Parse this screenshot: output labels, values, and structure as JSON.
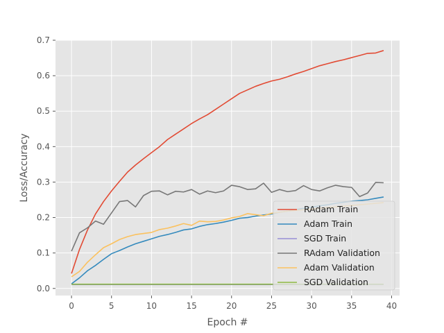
{
  "chart_data": {
    "type": "line",
    "title": "",
    "xlabel": "Epoch #",
    "ylabel": "Loss/Accuracy",
    "xlim": [
      -2,
      41
    ],
    "ylim": [
      -0.02,
      0.7
    ],
    "xticks": [
      0,
      5,
      10,
      15,
      20,
      25,
      30,
      35,
      40
    ],
    "yticks": [
      0.0,
      0.1,
      0.2,
      0.3,
      0.4,
      0.5,
      0.6,
      0.7
    ],
    "xtick_labels": [
      "0",
      "5",
      "10",
      "15",
      "20",
      "25",
      "30",
      "35",
      "40"
    ],
    "ytick_labels": [
      "0.0",
      "0.1",
      "0.2",
      "0.3",
      "0.4",
      "0.5",
      "0.6",
      "0.7"
    ],
    "grid": true,
    "legend_position": "lower-right",
    "style": "ggplot",
    "x": [
      0,
      1,
      2,
      3,
      4,
      5,
      6,
      7,
      8,
      9,
      10,
      11,
      12,
      13,
      14,
      15,
      16,
      17,
      18,
      19,
      20,
      21,
      22,
      23,
      24,
      25,
      26,
      27,
      28,
      29,
      30,
      31,
      32,
      33,
      34,
      35,
      36,
      37,
      38,
      39
    ],
    "series": [
      {
        "name": "RAdam Train",
        "color": "#e24a33",
        "values": [
          0.042,
          0.11,
          0.165,
          0.21,
          0.245,
          0.275,
          0.302,
          0.328,
          0.348,
          0.366,
          0.383,
          0.4,
          0.42,
          0.435,
          0.45,
          0.465,
          0.478,
          0.49,
          0.505,
          0.52,
          0.535,
          0.55,
          0.56,
          0.57,
          0.578,
          0.585,
          0.59,
          0.597,
          0.605,
          0.612,
          0.62,
          0.628,
          0.634,
          0.64,
          0.645,
          0.651,
          0.657,
          0.663,
          0.664,
          0.671
        ]
      },
      {
        "name": "Adam Train",
        "color": "#348abd",
        "values": [
          0.013,
          0.03,
          0.05,
          0.065,
          0.082,
          0.098,
          0.107,
          0.117,
          0.126,
          0.133,
          0.14,
          0.147,
          0.152,
          0.158,
          0.165,
          0.168,
          0.175,
          0.18,
          0.183,
          0.187,
          0.192,
          0.198,
          0.2,
          0.204,
          0.207,
          0.21,
          0.215,
          0.218,
          0.222,
          0.226,
          0.229,
          0.233,
          0.236,
          0.24,
          0.243,
          0.246,
          0.248,
          0.25,
          0.254,
          0.258
        ]
      },
      {
        "name": "SGD Train",
        "color": "#988ed5",
        "values": [
          0.011,
          0.011,
          0.011,
          0.011,
          0.011,
          0.011,
          0.011,
          0.011,
          0.011,
          0.011,
          0.011,
          0.011,
          0.011,
          0.011,
          0.011,
          0.011,
          0.011,
          0.011,
          0.011,
          0.011,
          0.011,
          0.011,
          0.011,
          0.011,
          0.011,
          0.011,
          0.011,
          0.011,
          0.011,
          0.011,
          0.011,
          0.011,
          0.011,
          0.011,
          0.011,
          0.011,
          0.011,
          0.011,
          0.011,
          0.011
        ]
      },
      {
        "name": "RAdam Validation",
        "color": "#777777",
        "values": [
          0.105,
          0.157,
          0.171,
          0.19,
          0.181,
          0.213,
          0.245,
          0.248,
          0.23,
          0.262,
          0.274,
          0.275,
          0.264,
          0.274,
          0.272,
          0.279,
          0.266,
          0.275,
          0.27,
          0.275,
          0.291,
          0.287,
          0.279,
          0.281,
          0.297,
          0.271,
          0.279,
          0.273,
          0.276,
          0.29,
          0.279,
          0.275,
          0.284,
          0.291,
          0.287,
          0.285,
          0.259,
          0.269,
          0.299,
          0.298
        ]
      },
      {
        "name": "Adam Validation",
        "color": "#fbc15e",
        "values": [
          0.033,
          0.048,
          0.074,
          0.095,
          0.115,
          0.126,
          0.138,
          0.146,
          0.152,
          0.155,
          0.158,
          0.166,
          0.17,
          0.176,
          0.183,
          0.178,
          0.19,
          0.188,
          0.189,
          0.193,
          0.199,
          0.203,
          0.211,
          0.208,
          0.205,
          0.212,
          0.215,
          0.218,
          0.22,
          0.222,
          0.224,
          0.226,
          0.228,
          0.23,
          0.232,
          0.234,
          0.236,
          0.238,
          0.24,
          0.242
        ]
      },
      {
        "name": "SGD Validation",
        "color": "#8eba42",
        "values": [
          0.012,
          0.012,
          0.012,
          0.012,
          0.012,
          0.012,
          0.012,
          0.012,
          0.012,
          0.012,
          0.012,
          0.012,
          0.012,
          0.012,
          0.012,
          0.012,
          0.012,
          0.012,
          0.012,
          0.012,
          0.012,
          0.012,
          0.012,
          0.012,
          0.012,
          0.012,
          0.012,
          0.012,
          0.012,
          0.012,
          0.012,
          0.012,
          0.012,
          0.012,
          0.012,
          0.012,
          0.012,
          0.012,
          0.012,
          0.012
        ]
      }
    ]
  }
}
